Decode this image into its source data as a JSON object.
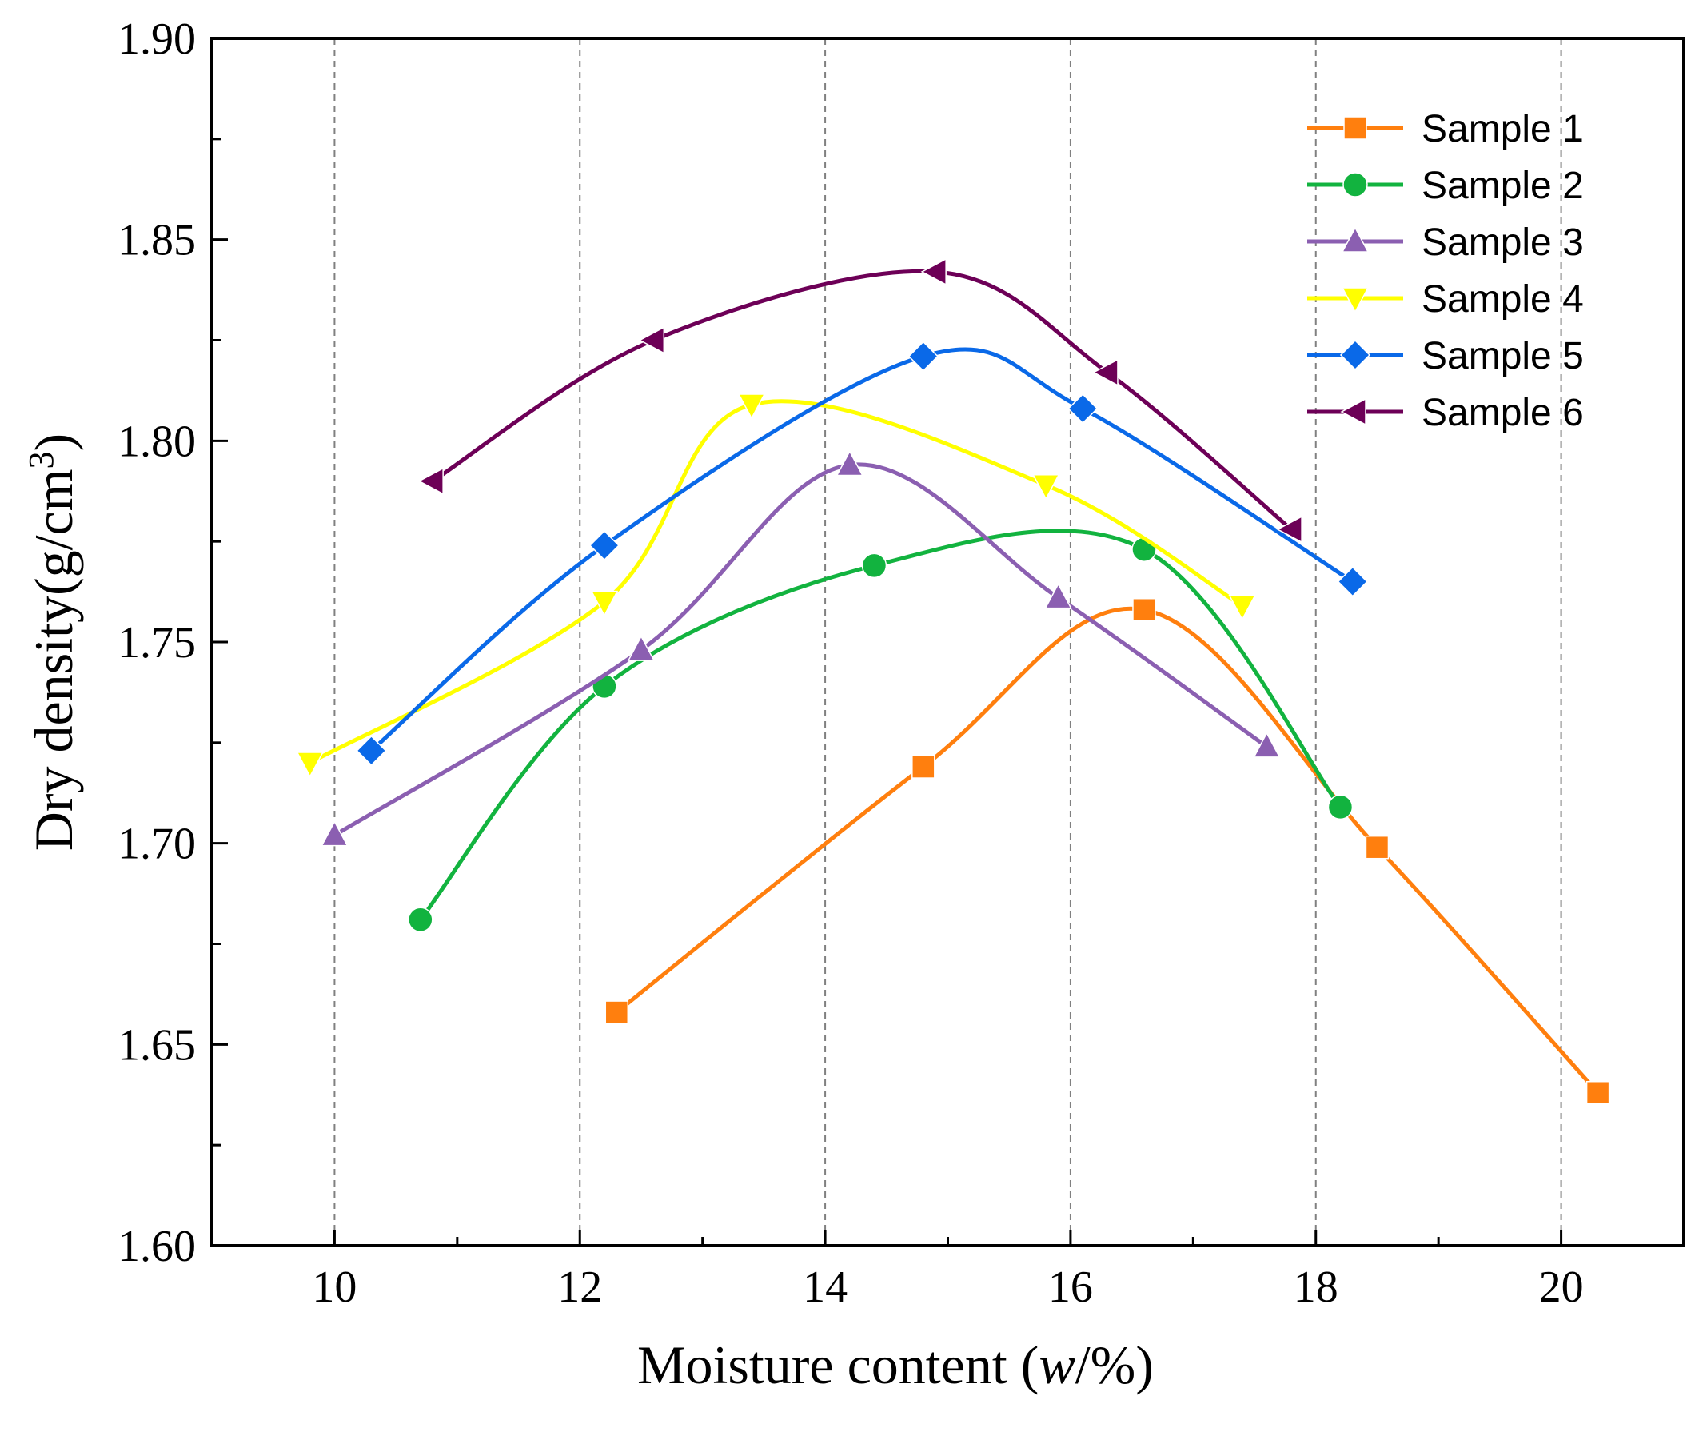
{
  "chart_data": {
    "type": "line",
    "title": "",
    "xlabel": "Moisture content (w/%)",
    "xlabel_parts": {
      "before": "Moisture content (",
      "italic": "w",
      "after": "/%)"
    },
    "ylabel": "Dry density(g/cm3)",
    "ylabel_parts": {
      "base": "Dry density(g/cm",
      "superscript": "3",
      "close": ")"
    },
    "xlim": [
      9,
      21
    ],
    "ylim": [
      1.6,
      1.9
    ],
    "x_ticks": [
      10,
      12,
      14,
      16,
      18,
      20
    ],
    "x_tick_labels": [
      "10",
      "12",
      "14",
      "16",
      "18",
      "20"
    ],
    "y_ticks": [
      1.6,
      1.65,
      1.7,
      1.75,
      1.8,
      1.85,
      1.9
    ],
    "y_tick_labels": [
      "1.60",
      "1.65",
      "1.70",
      "1.75",
      "1.80",
      "1.85",
      "1.90"
    ],
    "grid": "vertical dashed lines at major x ticks",
    "legend_position": "top-right",
    "series": [
      {
        "name": "Sample 1",
        "color": "#FF7F0E",
        "marker": "square",
        "x": [
          12.3,
          14.8,
          16.6,
          18.5,
          20.3
        ],
        "y": [
          1.658,
          1.719,
          1.758,
          1.699,
          1.638
        ]
      },
      {
        "name": "Sample 2",
        "color": "#12B33F",
        "marker": "circle",
        "x": [
          10.7,
          12.2,
          14.4,
          16.6,
          18.2
        ],
        "y": [
          1.681,
          1.739,
          1.769,
          1.773,
          1.709
        ]
      },
      {
        "name": "Sample 3",
        "color": "#8B5FB1",
        "marker": "triangle-up",
        "x": [
          10.0,
          12.5,
          14.2,
          15.9,
          17.6
        ],
        "y": [
          1.702,
          1.748,
          1.794,
          1.761,
          1.724
        ]
      },
      {
        "name": "Sample 4",
        "color": "#FFFF00",
        "marker": "triangle-down",
        "x": [
          9.8,
          12.2,
          13.4,
          15.8,
          17.4
        ],
        "y": [
          1.72,
          1.76,
          1.809,
          1.789,
          1.759
        ]
      },
      {
        "name": "Sample 5",
        "color": "#0A69E8",
        "marker": "diamond",
        "x": [
          10.3,
          12.2,
          14.8,
          16.1,
          18.3
        ],
        "y": [
          1.723,
          1.774,
          1.821,
          1.808,
          1.765
        ]
      },
      {
        "name": "Sample 6",
        "color": "#6D0057",
        "marker": "triangle-left",
        "x": [
          10.8,
          12.6,
          14.9,
          16.3,
          17.8
        ],
        "y": [
          1.79,
          1.825,
          1.842,
          1.817,
          1.778
        ]
      }
    ]
  }
}
